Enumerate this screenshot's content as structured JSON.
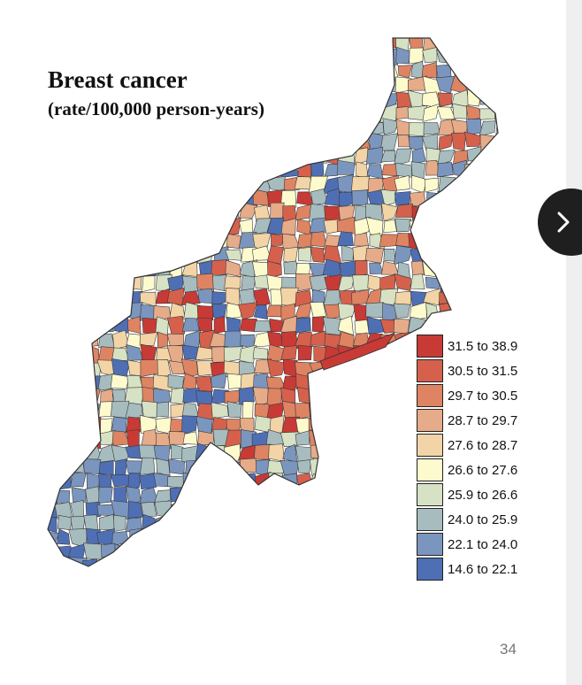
{
  "map": {
    "title": "Breast cancer",
    "subtitle": "(rate/100,000 person-years)",
    "legend": [
      {
        "label": "31.5 to 38.9",
        "color": "#c83a35"
      },
      {
        "label": "30.5 to 31.5",
        "color": "#d5614c"
      },
      {
        "label": "29.7 to 30.5",
        "color": "#de8462"
      },
      {
        "label": "28.7 to 29.7",
        "color": "#e6ab88"
      },
      {
        "label": "27.6 to 28.7",
        "color": "#f2d4a6"
      },
      {
        "label": "26.6 to 27.6",
        "color": "#fdfbcd"
      },
      {
        "label": "25.9 to 26.6",
        "color": "#d7e2c5"
      },
      {
        "label": "24.0 to 25.9",
        "color": "#a7bcbf"
      },
      {
        "label": "22.1 to 24.0",
        "color": "#7b96be"
      },
      {
        "label": "14.6 to 22.1",
        "color": "#4f6fb5"
      }
    ]
  },
  "navigation": {
    "next_icon": "chevron-right-icon"
  },
  "page_number": "34"
}
